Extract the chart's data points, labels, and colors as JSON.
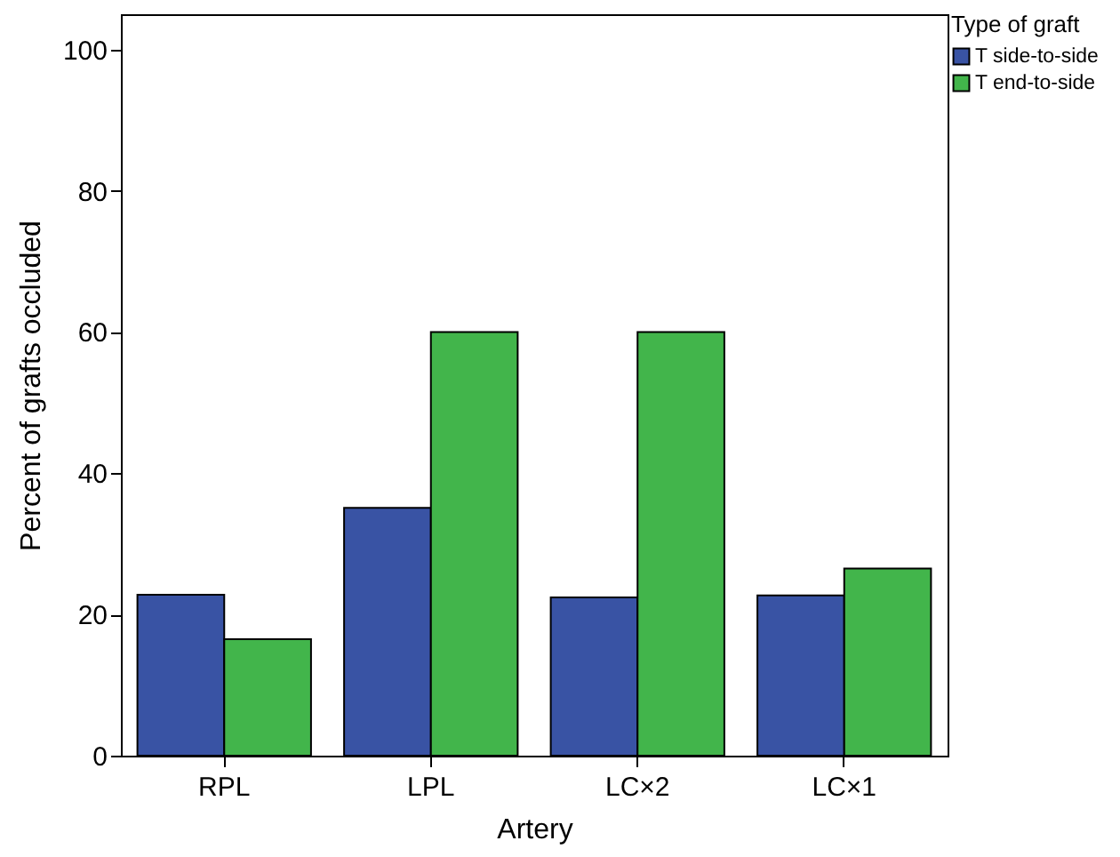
{
  "chart_data": {
    "type": "bar",
    "xlabel": "Artery",
    "ylabel": "Percent of grafts occluded",
    "legend_title": "Type of graft",
    "categories": [
      "RPL",
      "LPL",
      "LC×2",
      "LC×1"
    ],
    "series": [
      {
        "name": "T side-to-side",
        "color": "#3953a4",
        "values": [
          22.8,
          35.1,
          22.4,
          22.7
        ]
      },
      {
        "name": "T end-to-side",
        "color": "#42b54b",
        "values": [
          16.5,
          60,
          60,
          26.5
        ]
      }
    ],
    "ylim": [
      0,
      105
    ],
    "yticks": [
      0,
      20,
      40,
      60,
      80,
      100
    ],
    "grid": false,
    "legend": "top right"
  }
}
